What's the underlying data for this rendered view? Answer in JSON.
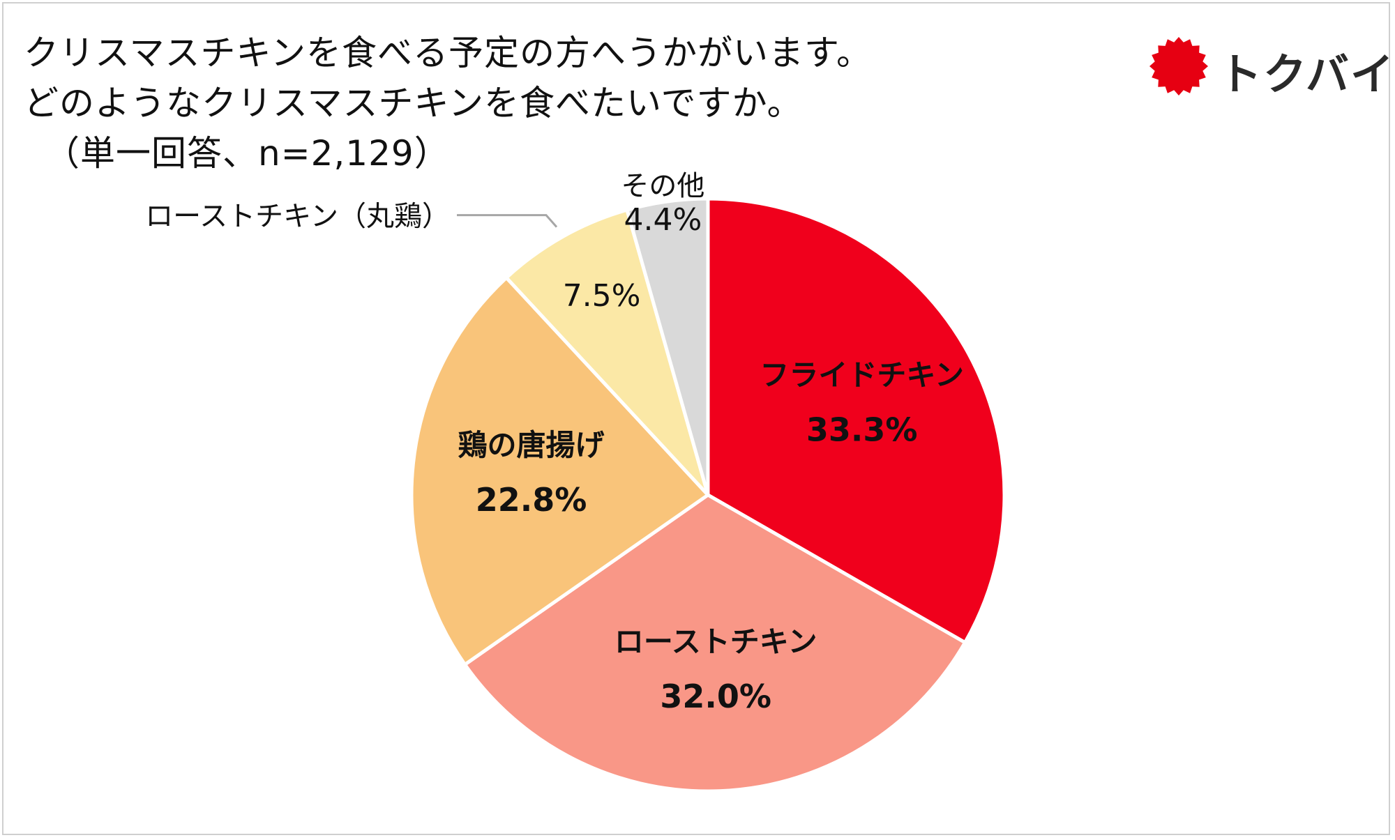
{
  "title": {
    "line1": "クリスマスチキンを食べる予定の方へうかがいます。",
    "line2": "どのようなクリスマスチキンを食べたいですか。",
    "note": "（単一回答、n=2,129）"
  },
  "logo": {
    "text": "トクバイ",
    "icon": "red-sunburst-icon",
    "color": "#e60012"
  },
  "chart_data": {
    "type": "pie",
    "start_angle_deg": 0,
    "direction": "clockwise",
    "slices": [
      {
        "label": "フライドチキン",
        "value": 33.3,
        "value_label": "33.3%",
        "color": "#f0001c",
        "label_style": "bold-inside"
      },
      {
        "label": "ローストチキン",
        "value": 32.0,
        "value_label": "32.0%",
        "color": "#f99787",
        "label_style": "bold-inside"
      },
      {
        "label": "鶏の唐揚げ",
        "value": 22.8,
        "value_label": "22.8%",
        "color": "#f9c47a",
        "label_style": "bold-inside"
      },
      {
        "label": "ローストチキン（丸鶏）",
        "value": 7.5,
        "value_label": "7.5%",
        "color": "#fbe8a6",
        "label_style": "outside-callout"
      },
      {
        "label": "その他",
        "value": 4.4,
        "value_label": "4.4%",
        "color": "#d9d9d9",
        "label_style": "outside-top"
      }
    ]
  }
}
